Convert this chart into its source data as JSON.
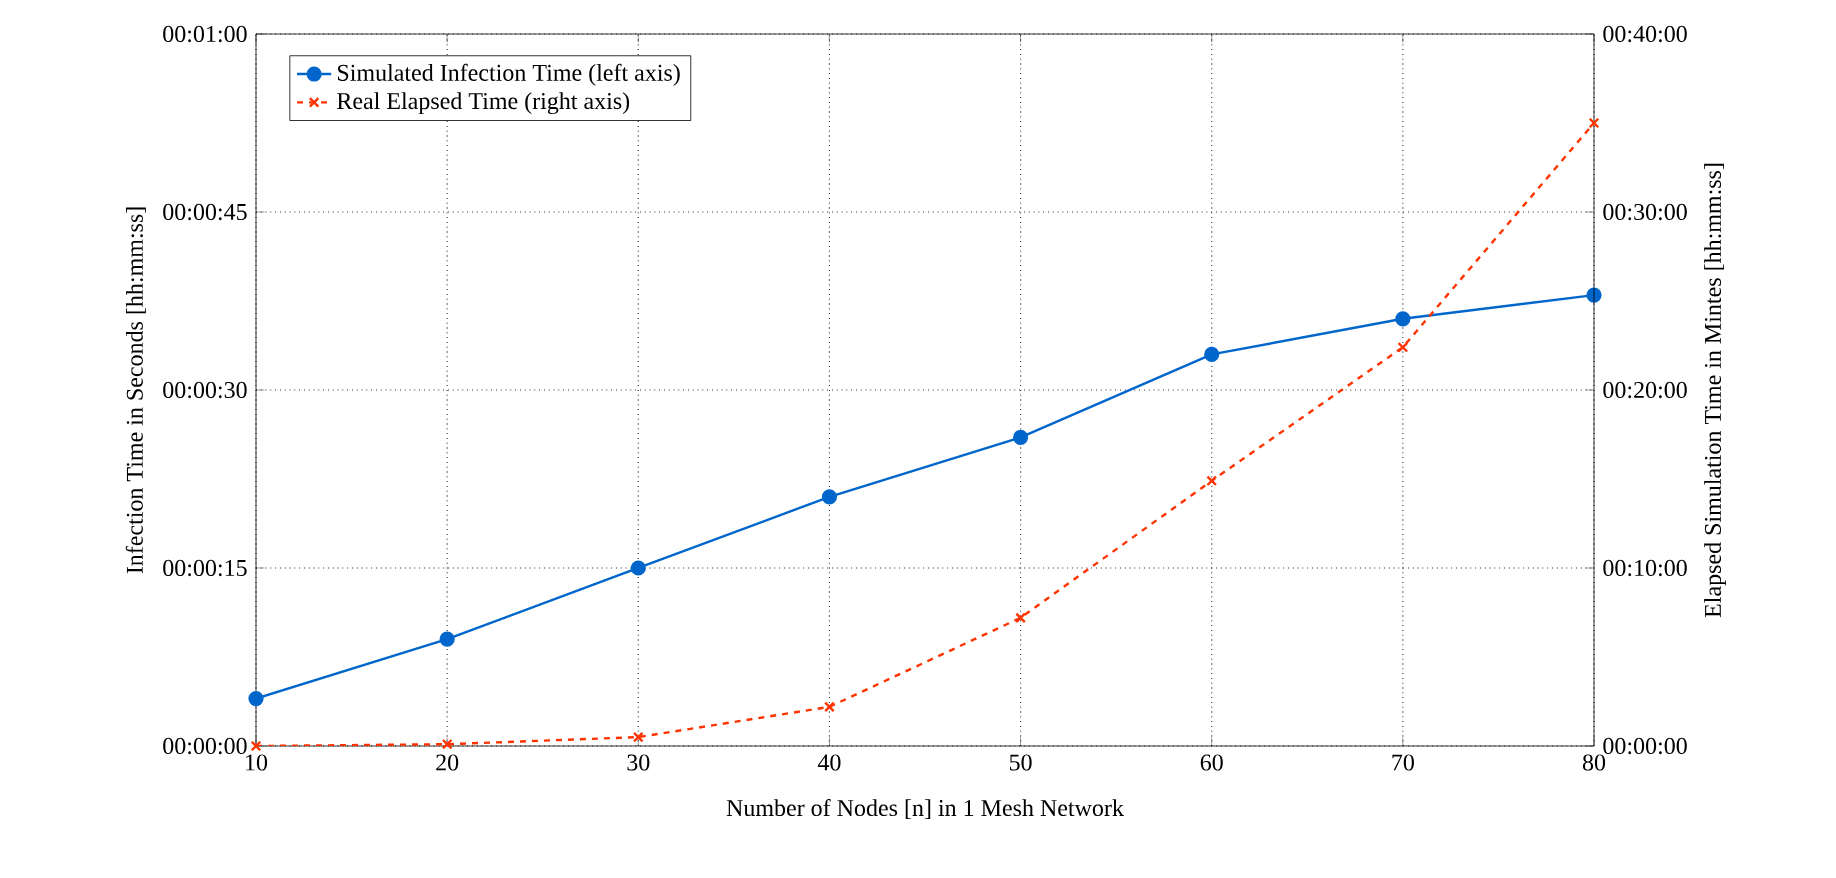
{
  "chart_data": {
    "type": "line",
    "xlabel": "Number of Nodes [n] in 1 Mesh Network",
    "ylabel": "Infection Time in Seconds [hh:mm:ss]",
    "y2label": "Elapsed Simulation Time in Mintes [hh:mm:ss]",
    "x": [
      10,
      20,
      30,
      40,
      50,
      60,
      70,
      80
    ],
    "series": [
      {
        "name": "Simulated Infection Time (left axis)",
        "color": "#0066cc",
        "marker": "circle",
        "line_style": "solid",
        "values": [
          4,
          9,
          15,
          21,
          26,
          33,
          36,
          38
        ]
      },
      {
        "name": "Real Elapsed Time (right axis)",
        "color": "#ff3300",
        "marker": "cross",
        "line_style": "dashed",
        "axis": "y2",
        "values": [
          0,
          0.1,
          0.5,
          2.2,
          7.2,
          14.9,
          22.4,
          35
        ]
      }
    ],
    "xlim": [
      10,
      80
    ],
    "xticks": [
      10,
      20,
      30,
      40,
      50,
      60,
      70,
      80
    ],
    "ylim": [
      0,
      60
    ],
    "yticks": [
      {
        "value": 0,
        "label": "00:00:00"
      },
      {
        "value": 15,
        "label": "00:00:15"
      },
      {
        "value": 30,
        "label": "00:00:30"
      },
      {
        "value": 45,
        "label": "00:00:45"
      },
      {
        "value": 60,
        "label": "00:01:00"
      }
    ],
    "y2lim": [
      0,
      40
    ],
    "y2ticks": [
      {
        "value": 0,
        "label": "00:00:00"
      },
      {
        "value": 10,
        "label": "00:10:00"
      },
      {
        "value": 20,
        "label": "00:20:00"
      },
      {
        "value": 30,
        "label": "00:30:00"
      },
      {
        "value": 40,
        "label": "00:40:00"
      }
    ],
    "grid": true,
    "legend": "top left"
  }
}
